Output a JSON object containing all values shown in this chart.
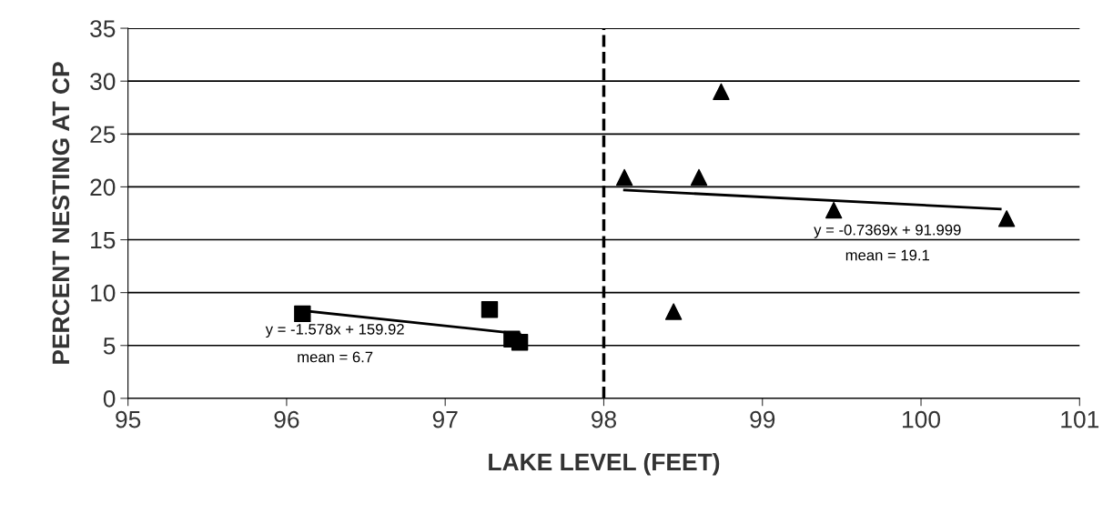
{
  "chart_data": {
    "type": "scatter",
    "xlabel": "LAKE LEVEL (FEET)",
    "ylabel": "PERCENT NESTING AT CP",
    "xlim": [
      95,
      101
    ],
    "xticks": [
      95,
      96,
      97,
      98,
      99,
      100,
      101
    ],
    "ylim": [
      0,
      35
    ],
    "yticks": [
      0,
      5,
      10,
      15,
      20,
      25,
      30,
      35
    ],
    "grid": "y",
    "legend": false,
    "series": [
      {
        "marker": "square",
        "color": "#000000",
        "x": [
          96.1,
          97.28,
          97.42,
          97.47
        ],
        "values": [
          8.0,
          8.4,
          5.6,
          5.3
        ]
      },
      {
        "marker": "triangle",
        "color": "#000000",
        "x": [
          98.13,
          98.6,
          98.74,
          98.44,
          99.45,
          100.54
        ],
        "values": [
          20.9,
          20.9,
          29.0,
          8.2,
          17.8,
          17.0
        ]
      },
      {
        "type": "line",
        "marker": "none",
        "color": "#000000",
        "x": [
          96.1,
          97.47
        ],
        "values": [
          8.3,
          6.1
        ]
      },
      {
        "type": "line",
        "marker": "none",
        "color": "#000000",
        "x": [
          98.13,
          100.5
        ],
        "values": [
          19.7,
          17.9
        ]
      }
    ],
    "ref_lines": [
      {
        "axis": "x",
        "value": 98,
        "color": "#000000",
        "line_style": "dashed"
      }
    ],
    "annotations": [
      "y = -1.578x + 159.92",
      "mean = 6.7",
      "y = -0.7369x + 91.999",
      "mean = 19.1"
    ]
  }
}
